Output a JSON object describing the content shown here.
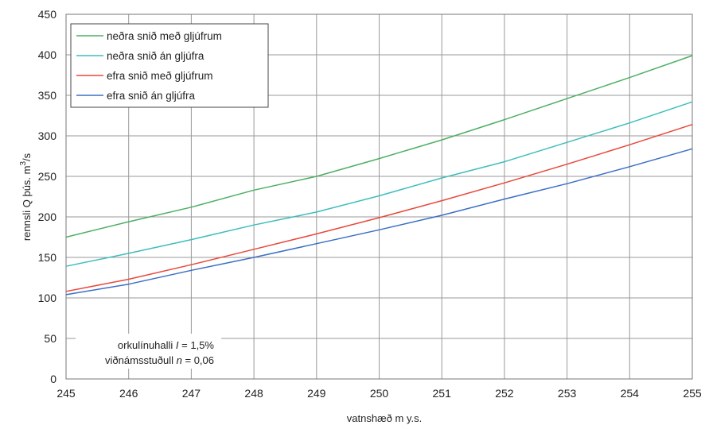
{
  "chart_data": {
    "type": "line",
    "xlabel": "vatnshæð m y.s.",
    "ylabel_main": "rennsli  Q  þús. m",
    "ylabel_sup": "3",
    "ylabel_tail": "/s",
    "xlim": [
      245,
      255
    ],
    "ylim": [
      0,
      450
    ],
    "x_ticks": [
      245,
      246,
      247,
      248,
      249,
      250,
      251,
      252,
      253,
      254,
      255
    ],
    "y_ticks": [
      0,
      50,
      100,
      150,
      200,
      250,
      300,
      350,
      400,
      450
    ],
    "grid": true,
    "legend_position": "top-left",
    "x": [
      245,
      246,
      247,
      248,
      249,
      250,
      251,
      252,
      253,
      254,
      255
    ],
    "series": [
      {
        "name": "neðra snið með gljúfrum",
        "color": "#4caf63",
        "values": [
          175,
          194,
          212,
          233,
          250,
          272,
          295,
          320,
          346,
          372,
          399
        ]
      },
      {
        "name": "neðra snið án gljúfra",
        "color": "#3fbdbd",
        "values": [
          139,
          155,
          172,
          190,
          206,
          226,
          248,
          268,
          292,
          316,
          342
        ]
      },
      {
        "name": "efra snið með gljúfrum",
        "color": "#e8483a",
        "values": [
          108,
          123,
          141,
          160,
          179,
          199,
          220,
          242,
          265,
          289,
          314
        ]
      },
      {
        "name": "efra snið án gljúfra",
        "color": "#3b6fc4",
        "values": [
          104,
          117,
          134,
          150,
          167,
          184,
          202,
          222,
          241,
          262,
          284
        ]
      }
    ],
    "annotations": {
      "line1_label": "orkulínuhalli ",
      "line1_sym": "I",
      "line1_value": " = 1,5%",
      "line2_label": "viðnámsstuðull ",
      "line2_sym": "n",
      "line2_value": " = 0,06"
    }
  }
}
